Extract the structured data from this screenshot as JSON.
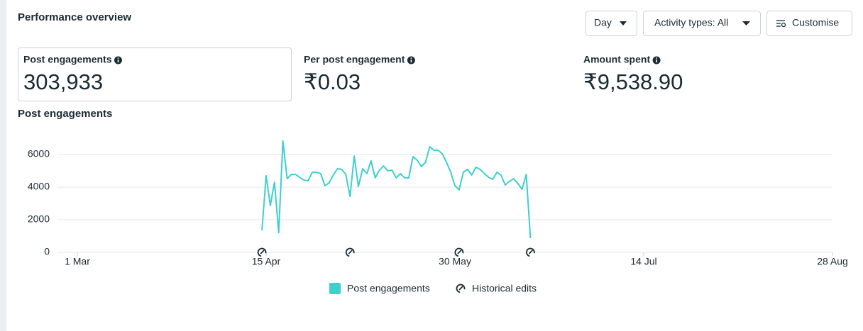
{
  "header": {
    "title": "Performance overview"
  },
  "controls": {
    "day": "Day",
    "activity_types": "Activity types: All",
    "customise": "Customise"
  },
  "metrics": [
    {
      "label": "Post engagements",
      "value": "303,933"
    },
    {
      "label": "Per post engagement",
      "value": "₹0.03"
    },
    {
      "label": "Amount spent",
      "value": "₹9,538.90"
    }
  ],
  "chart_data": {
    "type": "line",
    "title": "Post engagements",
    "x": [
      "14 Apr",
      "15 Apr",
      "16 Apr",
      "17 Apr",
      "18 Apr",
      "19 Apr",
      "20 Apr",
      "21 Apr",
      "22 Apr",
      "23 Apr",
      "24 Apr",
      "25 Apr",
      "26 Apr",
      "27 Apr",
      "28 Apr",
      "29 Apr",
      "30 Apr",
      "1 May",
      "2 May",
      "3 May",
      "4 May",
      "5 May",
      "6 May",
      "7 May",
      "8 May",
      "9 May",
      "10 May",
      "11 May",
      "12 May",
      "13 May",
      "14 May",
      "15 May",
      "16 May",
      "17 May",
      "18 May",
      "19 May",
      "20 May",
      "21 May",
      "22 May",
      "23 May",
      "24 May",
      "25 May",
      "26 May",
      "27 May",
      "28 May",
      "29 May",
      "30 May",
      "31 May",
      "1 Jun",
      "2 Jun",
      "3 Jun",
      "4 Jun",
      "5 Jun",
      "6 Jun",
      "7 Jun",
      "8 Jun",
      "9 Jun",
      "10 Jun",
      "11 Jun",
      "12 Jun",
      "13 Jun",
      "14 Jun",
      "15 Jun",
      "16 Jun",
      "17 Jun"
    ],
    "xlim": [
      "1 Mar",
      "28 Aug"
    ],
    "xticks": [
      "1 Mar",
      "15 Apr",
      "30 May",
      "14 Jul",
      "28 Aug"
    ],
    "ylim": [
      0,
      7000
    ],
    "yticks": [
      0,
      2000,
      4000,
      6000
    ],
    "grid": true,
    "series": [
      {
        "name": "Post engagements",
        "color": "#3ecfce",
        "values": [
          1350,
          4700,
          2870,
          4300,
          1200,
          6830,
          4520,
          4780,
          4780,
          4600,
          4430,
          4390,
          4910,
          4910,
          4830,
          4090,
          4260,
          4740,
          5130,
          5090,
          4780,
          3430,
          5910,
          4040,
          5130,
          4830,
          5610,
          4570,
          5040,
          5300,
          5000,
          5040,
          4570,
          4830,
          4570,
          4570,
          5870,
          5650,
          5260,
          5520,
          6480,
          6260,
          6260,
          6040,
          5520,
          4910,
          4090,
          3830,
          4910,
          5090,
          4740,
          5220,
          5090,
          4830,
          4610,
          4480,
          4910,
          4740,
          4130,
          4350,
          4520,
          4220,
          3870,
          4780,
          870
        ]
      }
    ],
    "historical_edits": {
      "name": "Historical edits",
      "x": [
        "14 Apr",
        "5 May",
        "31 May",
        "17 Jun"
      ]
    }
  }
}
